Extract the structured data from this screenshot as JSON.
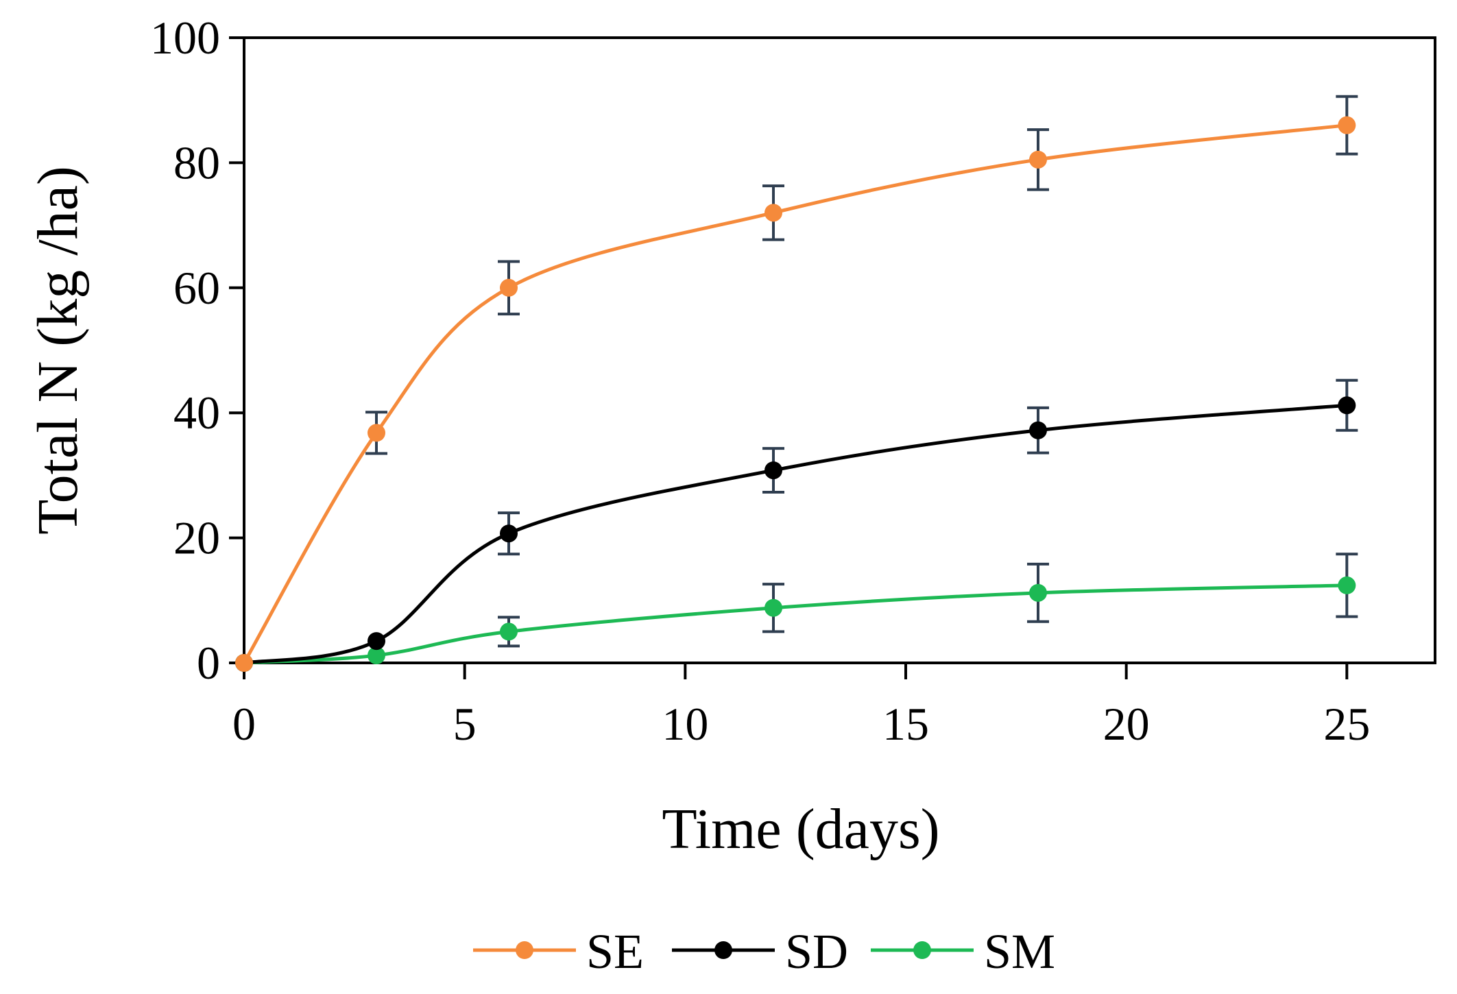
{
  "chart_data": {
    "type": "line",
    "title": "",
    "xlabel": "Time (days)",
    "ylabel": "Total N (kg /ha)",
    "xlim": [
      0,
      27
    ],
    "ylim": [
      0,
      100
    ],
    "x_ticks": [
      "0",
      "5",
      "10",
      "15",
      "20",
      "25"
    ],
    "y_ticks": [
      "0",
      "20",
      "40",
      "60",
      "80",
      "100"
    ],
    "x": [
      0,
      3,
      6,
      12,
      18,
      25
    ],
    "series": [
      {
        "name": "SE",
        "color": "#f58a3b",
        "values": [
          0,
          36.8,
          60.0,
          72.0,
          80.5,
          86.0
        ],
        "errors": [
          0,
          3.3,
          4.2,
          4.3,
          4.8,
          4.6
        ]
      },
      {
        "name": "SD",
        "color": "#000000",
        "values": [
          0,
          3.5,
          20.7,
          30.8,
          37.2,
          41.2
        ],
        "errors": [
          0,
          0,
          3.3,
          3.5,
          3.6,
          4.0
        ]
      },
      {
        "name": "SM",
        "color": "#1db954",
        "values": [
          0,
          1.2,
          5.0,
          8.8,
          11.2,
          12.4
        ],
        "errors": [
          0,
          0,
          2.3,
          3.8,
          4.6,
          5.0
        ]
      }
    ],
    "error_bar_color": "#2f3e50",
    "legend_position": "bottom-center",
    "grid": false
  }
}
